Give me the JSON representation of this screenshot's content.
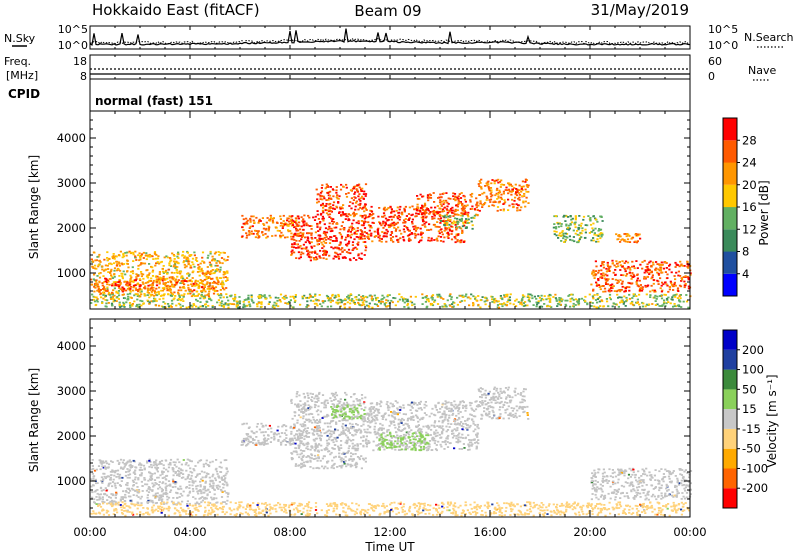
{
  "header": {
    "title": "Hokkaido East (fitACF)",
    "beam": "Beam 09",
    "date": "31/May/2019"
  },
  "strips": {
    "nsky_label": "N.Sky",
    "nsearch_label": "N.Search",
    "nsky_ticks": [
      "10^5",
      "10^0"
    ],
    "nsearch_ticks": [
      "10^5",
      "10^0"
    ],
    "freq_label_1": "Freq.",
    "freq_label_2": "[MHz]",
    "freq_ticks": [
      "18",
      "8"
    ],
    "nave_label": "Nave",
    "nave_ticks": [
      "60",
      "0"
    ],
    "cpid_label": "CPID",
    "cpid_value": "normal (fast) 151"
  },
  "colors": {
    "power": [
      "#0000ff",
      "#2050a0",
      "#3a8a5a",
      "#62b062",
      "#ffc800",
      "#ff9600",
      "#ff5a00",
      "#ff0000"
    ],
    "velocity": [
      "#ff0000",
      "#ff6400",
      "#ffaa00",
      "#ffd27a",
      "#c8c8c8",
      "#8ad05a",
      "#3c8a3c",
      "#2040a0",
      "#0000c8"
    ],
    "velocity_gray": "#c3c3c3",
    "velocity_green": "#78c850"
  },
  "chart_data": [
    {
      "type": "heatmap",
      "name": "power",
      "xlabel": "",
      "ylabel": "Slant Range [km]",
      "xlim": [
        "00:00",
        "24:00"
      ],
      "ylim": [
        200,
        4600
      ],
      "y_ticks": [
        1000,
        2000,
        3000,
        4000
      ],
      "x_ticks": [
        "00:00",
        "04:00",
        "08:00",
        "12:00",
        "16:00",
        "20:00",
        "00:00"
      ],
      "colorbar": {
        "label": "Power [dB]",
        "range": [
          0,
          32
        ],
        "ticks": [
          "4",
          "8",
          "12",
          "16",
          "20",
          "24",
          "28"
        ]
      },
      "echo_regions": [
        {
          "t": [
            0.0,
            5.5
          ],
          "r": [
            500,
            1500
          ],
          "power": 20
        },
        {
          "t": [
            0.0,
            2.5
          ],
          "r": [
            600,
            900
          ],
          "power": 26
        },
        {
          "t": [
            2.5,
            5.0
          ],
          "r": [
            600,
            900
          ],
          "power": 24
        },
        {
          "t": [
            6.0,
            8.5
          ],
          "r": [
            1800,
            2300
          ],
          "power": 24
        },
        {
          "t": [
            8.0,
            11.0
          ],
          "r": [
            1300,
            2300
          ],
          "power": 28
        },
        {
          "t": [
            9.0,
            11.0
          ],
          "r": [
            2300,
            3000
          ],
          "power": 27
        },
        {
          "t": [
            11.0,
            15.0
          ],
          "r": [
            1700,
            2500
          ],
          "power": 27
        },
        {
          "t": [
            13.0,
            15.5
          ],
          "r": [
            2300,
            2800
          ],
          "power": 26
        },
        {
          "t": [
            15.5,
            17.5
          ],
          "r": [
            2400,
            3100
          ],
          "power": 24
        },
        {
          "t": [
            14.0,
            15.5
          ],
          "r": [
            2000,
            2300
          ],
          "power": 14
        },
        {
          "t": [
            18.5,
            20.5
          ],
          "r": [
            1700,
            2300
          ],
          "power": 14
        },
        {
          "t": [
            21.0,
            22.0
          ],
          "r": [
            1700,
            1900
          ],
          "power": 24
        },
        {
          "t": [
            20.0,
            24.0
          ],
          "r": [
            600,
            1300
          ],
          "power": 26
        },
        {
          "t": [
            0.0,
            24.0
          ],
          "r": [
            250,
            550
          ],
          "power": 16
        }
      ]
    },
    {
      "type": "heatmap",
      "name": "velocity",
      "xlabel": "Time UT",
      "ylabel": "Slant Range [km]",
      "xlim": [
        "00:00",
        "24:00"
      ],
      "ylim": [
        200,
        4600
      ],
      "y_ticks": [
        1000,
        2000,
        3000,
        4000
      ],
      "x_ticks": [
        "00:00",
        "04:00",
        "08:00",
        "12:00",
        "16:00",
        "20:00",
        "00:00"
      ],
      "colorbar": {
        "label": "Velocity [m s⁻¹]",
        "range": [
          -250,
          250
        ],
        "ticks": [
          "200",
          "100",
          "50",
          "15",
          "-15",
          "-50",
          "-100",
          "-200"
        ]
      },
      "echo_regions": [
        {
          "t": [
            0.0,
            5.5
          ],
          "r": [
            500,
            1500
          ],
          "velocity": 0
        },
        {
          "t": [
            6.0,
            8.5
          ],
          "r": [
            1800,
            2300
          ],
          "velocity": 0
        },
        {
          "t": [
            8.0,
            11.0
          ],
          "r": [
            1300,
            3000
          ],
          "velocity": 0
        },
        {
          "t": [
            9.5,
            11.0
          ],
          "r": [
            2400,
            2700
          ],
          "velocity": 30
        },
        {
          "t": [
            11.0,
            15.5
          ],
          "r": [
            1700,
            2800
          ],
          "velocity": 0
        },
        {
          "t": [
            11.5,
            13.5
          ],
          "r": [
            1700,
            2100
          ],
          "velocity": 30
        },
        {
          "t": [
            15.5,
            17.5
          ],
          "r": [
            2400,
            3100
          ],
          "velocity": 0
        },
        {
          "t": [
            20.0,
            24.0
          ],
          "r": [
            600,
            1300
          ],
          "velocity": 0
        },
        {
          "t": [
            0.0,
            24.0
          ],
          "r": [
            250,
            550
          ],
          "velocity": -30
        }
      ]
    }
  ]
}
